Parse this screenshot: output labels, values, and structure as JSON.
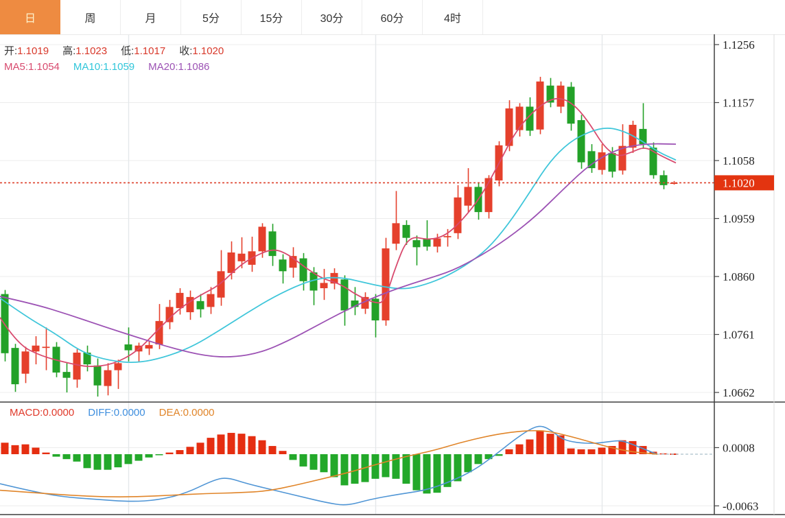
{
  "tabs": {
    "active_index": 0,
    "items": [
      "日",
      "周",
      "月",
      "5分",
      "15分",
      "30分",
      "60分",
      "4时"
    ]
  },
  "legend": {
    "ohlc": [
      {
        "label": "开:",
        "value": "1.1019"
      },
      {
        "label": "高:",
        "value": "1.1023"
      },
      {
        "label": "低:",
        "value": "1.1017"
      },
      {
        "label": "收:",
        "value": "1.1020"
      }
    ],
    "ma": [
      {
        "label": "MA5:",
        "value": "1.1054",
        "color": "#d84a6e"
      },
      {
        "label": "MA10:",
        "value": "1.1059",
        "color": "#30c6da"
      },
      {
        "label": "MA20:",
        "value": "1.1086",
        "color": "#9c52b4"
      }
    ],
    "macd": [
      {
        "label": "MACD:",
        "value": "0.0000",
        "color": "#e0392a"
      },
      {
        "label": "DIFF:",
        "value": "0.0000",
        "color": "#3e8ede"
      },
      {
        "label": "DEA:",
        "value": "0.0000",
        "color": "#e08428"
      }
    ]
  },
  "colors": {
    "up": "#e5402c",
    "down": "#23a128",
    "macd_up": "#e52e11",
    "macd_down": "#23a82a",
    "ma5": "#d84a6e",
    "ma10": "#3fc6da",
    "ma20": "#9c52b4",
    "diff": "#4f95d5",
    "dea": "#e08428",
    "ohlc_value": "#d8382a",
    "label_dark": "#333333",
    "grid": "#ececec",
    "vgrid": "#e4e8ea",
    "axis": "#3f3f3f",
    "dotted_line": "#dd3f28",
    "badge_bg": "#e33410",
    "badge_text": "#ffffff",
    "tab_active_bg": "#ee8b41",
    "tab_active_text": "#fdf1cb",
    "dashed_zero": "#b9ccd4"
  },
  "chart_data": {
    "type": "candlestick+macd",
    "title": "EUR/USD daily candlestick chart with MA5/MA10/MA20 and MACD",
    "price_axis": {
      "ticks": [
        "1.1256",
        "1.1157",
        "1.1058",
        "1.0959",
        "1.0860",
        "1.0761",
        "1.0662"
      ],
      "tick_values": [
        1.1256,
        1.1157,
        1.1058,
        1.0959,
        1.086,
        1.0761,
        1.0662
      ],
      "last_price_badge": {
        "label": "1.1020",
        "value": 1.102
      }
    },
    "macd_axis": {
      "ticks": [
        "0.0008",
        "-0.0063"
      ],
      "tick_values": [
        0.0008,
        -0.0063
      ]
    },
    "dotted_price_line": 1.102,
    "grid_candle_indices": [
      12,
      36,
      58
    ],
    "candles_format": [
      "open",
      "high",
      "low",
      "close"
    ],
    "candles": [
      [
        1.083,
        1.0837,
        1.0715,
        1.0729
      ],
      [
        1.0738,
        1.0745,
        1.0663,
        1.0676
      ],
      [
        1.0694,
        1.074,
        1.0678,
        1.0732
      ],
      [
        1.0732,
        1.0758,
        1.071,
        1.0742
      ],
      [
        1.0738,
        1.0773,
        1.07,
        1.074
      ],
      [
        1.074,
        1.0748,
        1.0688,
        1.0696
      ],
      [
        1.0697,
        1.0712,
        1.0662,
        1.0687
      ],
      [
        1.0684,
        1.0736,
        1.067,
        1.073
      ],
      [
        1.073,
        1.0742,
        1.0698,
        1.071
      ],
      [
        1.0708,
        1.072,
        1.0655,
        1.0674
      ],
      [
        1.0673,
        1.0712,
        1.0657,
        1.07
      ],
      [
        1.07,
        1.0718,
        1.0668,
        1.0712
      ],
      [
        1.0744,
        1.0773,
        1.0715,
        1.0734
      ],
      [
        1.0732,
        1.0747,
        1.0714,
        1.0742
      ],
      [
        1.0737,
        1.075,
        1.0726,
        1.0743
      ],
      [
        1.0744,
        1.0813,
        1.0736,
        1.0784
      ],
      [
        1.0782,
        1.082,
        1.077,
        1.0808
      ],
      [
        1.0806,
        1.084,
        1.0795,
        1.0832
      ],
      [
        1.0799,
        1.0836,
        1.0786,
        1.0825
      ],
      [
        1.0818,
        1.083,
        1.079,
        1.0804
      ],
      [
        1.0808,
        1.0842,
        1.0796,
        1.083
      ],
      [
        1.0824,
        1.0905,
        1.081,
        1.0869
      ],
      [
        1.0866,
        1.092,
        1.0855,
        1.0901
      ],
      [
        1.0886,
        1.0927,
        1.0874,
        1.0899
      ],
      [
        1.088,
        1.0928,
        1.0868,
        1.0903
      ],
      [
        1.0903,
        1.0951,
        1.0892,
        1.0945
      ],
      [
        1.0937,
        1.095,
        1.0878,
        1.0895
      ],
      [
        1.0889,
        1.0898,
        1.0848,
        1.0869
      ],
      [
        1.0875,
        1.091,
        1.0858,
        1.0895
      ],
      [
        1.0891,
        1.09,
        1.0836,
        1.0852
      ],
      [
        1.0867,
        1.0876,
        1.0811,
        1.0836
      ],
      [
        1.084,
        1.0873,
        1.082,
        1.0849
      ],
      [
        1.0848,
        1.0874,
        1.0838,
        1.0866
      ],
      [
        1.0855,
        1.0862,
        1.0776,
        1.0802
      ],
      [
        1.0819,
        1.0842,
        1.0794,
        1.0808
      ],
      [
        1.0805,
        1.0833,
        1.0796,
        1.0825
      ],
      [
        1.0822,
        1.083,
        1.0756,
        1.0785
      ],
      [
        1.0785,
        1.0926,
        1.0776,
        1.0908
      ],
      [
        1.0916,
        1.1006,
        1.0905,
        1.0951
      ],
      [
        1.0948,
        1.0956,
        1.0914,
        1.0926
      ],
      [
        1.0922,
        1.093,
        1.0879,
        1.091
      ],
      [
        1.0924,
        1.0956,
        1.0904,
        1.0911
      ],
      [
        1.0911,
        1.0933,
        1.0901,
        1.0925
      ],
      [
        1.0927,
        1.0941,
        1.0911,
        1.0929
      ],
      [
        1.0934,
        1.1016,
        1.0924,
        1.0995
      ],
      [
        1.0981,
        1.1045,
        1.0969,
        1.1013
      ],
      [
        1.1013,
        1.1021,
        1.0957,
        1.097
      ],
      [
        1.097,
        1.1033,
        1.0959,
        1.1028
      ],
      [
        1.1024,
        1.1091,
        1.1014,
        1.1084
      ],
      [
        1.1083,
        1.1161,
        1.1074,
        1.1147
      ],
      [
        1.111,
        1.1156,
        1.1099,
        1.115
      ],
      [
        1.115,
        1.1166,
        1.11,
        1.1109
      ],
      [
        1.1111,
        1.1201,
        1.1103,
        1.1193
      ],
      [
        1.1186,
        1.1199,
        1.1149,
        1.1157
      ],
      [
        1.115,
        1.1193,
        1.1139,
        1.1186
      ],
      [
        1.1184,
        1.1192,
        1.1109,
        1.1121
      ],
      [
        1.1127,
        1.1136,
        1.1044,
        1.1055
      ],
      [
        1.1074,
        1.1086,
        1.1037,
        1.1045
      ],
      [
        1.1042,
        1.1086,
        1.1034,
        1.1072
      ],
      [
        1.1071,
        1.1081,
        1.1029,
        1.1039
      ],
      [
        1.1041,
        1.112,
        1.1034,
        1.1083
      ],
      [
        1.108,
        1.1126,
        1.1071,
        1.1119
      ],
      [
        1.1112,
        1.1156,
        1.1078,
        1.1086
      ],
      [
        1.108,
        1.1089,
        1.1027,
        1.1033
      ],
      [
        1.1033,
        1.1041,
        1.1009,
        1.1016
      ],
      [
        1.1019,
        1.1023,
        1.1017,
        1.102
      ]
    ],
    "ma5_points": [
      [
        0,
        1.079
      ],
      [
        25,
        1.0745
      ],
      [
        60,
        1.0724
      ],
      [
        100,
        1.0712
      ],
      [
        130,
        1.0705
      ],
      [
        165,
        1.071
      ],
      [
        200,
        1.0732
      ],
      [
        230,
        1.0769
      ],
      [
        260,
        1.0804
      ],
      [
        290,
        1.0827
      ],
      [
        320,
        1.0845
      ],
      [
        350,
        1.088
      ],
      [
        380,
        1.09
      ],
      [
        400,
        1.0907
      ],
      [
        420,
        1.0898
      ],
      [
        445,
        1.0875
      ],
      [
        470,
        1.0856
      ],
      [
        495,
        1.0848
      ],
      [
        520,
        1.0828
      ],
      [
        545,
        1.0815
      ],
      [
        560,
        1.0815
      ],
      [
        575,
        1.0872
      ],
      [
        595,
        1.093
      ],
      [
        625,
        1.0922
      ],
      [
        650,
        1.093
      ],
      [
        675,
        1.0958
      ],
      [
        700,
        1.0995
      ],
      [
        725,
        1.1048
      ],
      [
        750,
        1.1105
      ],
      [
        775,
        1.114
      ],
      [
        800,
        1.1162
      ],
      [
        820,
        1.1165
      ],
      [
        840,
        1.115
      ],
      [
        860,
        1.112
      ],
      [
        880,
        1.1082
      ],
      [
        900,
        1.1064
      ],
      [
        920,
        1.1072
      ],
      [
        940,
        1.1082
      ],
      [
        960,
        1.1068
      ],
      [
        985,
        1.1054
      ]
    ],
    "ma10_points": [
      [
        0,
        1.0823
      ],
      [
        40,
        1.079
      ],
      [
        80,
        1.0763
      ],
      [
        120,
        1.073
      ],
      [
        160,
        1.0716
      ],
      [
        200,
        1.0712
      ],
      [
        240,
        1.0722
      ],
      [
        280,
        1.074
      ],
      [
        320,
        1.0768
      ],
      [
        360,
        1.0798
      ],
      [
        400,
        1.0826
      ],
      [
        440,
        1.0848
      ],
      [
        470,
        1.0858
      ],
      [
        500,
        1.0858
      ],
      [
        530,
        1.085
      ],
      [
        560,
        1.0842
      ],
      [
        590,
        1.0838
      ],
      [
        620,
        1.0846
      ],
      [
        650,
        1.086
      ],
      [
        680,
        1.088
      ],
      [
        710,
        1.0906
      ],
      [
        740,
        1.0948
      ],
      [
        770,
        1.1
      ],
      [
        800,
        1.1055
      ],
      [
        830,
        1.109
      ],
      [
        860,
        1.1108
      ],
      [
        885,
        1.1115
      ],
      [
        910,
        1.1108
      ],
      [
        935,
        1.1092
      ],
      [
        960,
        1.1072
      ],
      [
        985,
        1.1059
      ]
    ],
    "ma20_points": [
      [
        0,
        1.0826
      ],
      [
        50,
        1.0813
      ],
      [
        100,
        1.0795
      ],
      [
        150,
        1.0775
      ],
      [
        200,
        1.0756
      ],
      [
        250,
        1.0738
      ],
      [
        300,
        1.0724
      ],
      [
        340,
        1.0722
      ],
      [
        380,
        1.073
      ],
      [
        420,
        1.075
      ],
      [
        460,
        1.0775
      ],
      [
        500,
        1.08
      ],
      [
        540,
        1.0822
      ],
      [
        580,
        1.084
      ],
      [
        620,
        1.0855
      ],
      [
        660,
        1.087
      ],
      [
        700,
        1.0895
      ],
      [
        740,
        1.0925
      ],
      [
        780,
        1.0962
      ],
      [
        820,
        1.1008
      ],
      [
        860,
        1.1052
      ],
      [
        900,
        1.1078
      ],
      [
        940,
        1.1087
      ],
      [
        985,
        1.1086
      ]
    ],
    "macd_scale": 0.0001,
    "macd_hist": [
      14,
      11,
      12,
      8,
      2,
      -3,
      -6,
      -9,
      -17,
      -19,
      -19,
      -16,
      -12,
      -8,
      -4,
      -1,
      2,
      5,
      9,
      14,
      20,
      24,
      26,
      25,
      22,
      17,
      10,
      4,
      -7,
      -15,
      -19,
      -22,
      -28,
      -38,
      -36,
      -34,
      -30,
      -28,
      -30,
      -36,
      -44,
      -48,
      -47,
      -40,
      -33,
      -22,
      -12,
      -6,
      -2,
      6,
      12,
      18,
      29,
      25,
      23,
      7,
      6,
      6,
      8,
      10,
      17,
      16,
      10,
      3,
      1,
      0
    ],
    "diff_points": [
      [
        0,
        -36
      ],
      [
        40,
        -44
      ],
      [
        90,
        -52
      ],
      [
        140,
        -55
      ],
      [
        190,
        -58
      ],
      [
        230,
        -56
      ],
      [
        270,
        -48
      ],
      [
        310,
        -32
      ],
      [
        330,
        -28
      ],
      [
        360,
        -36
      ],
      [
        400,
        -44
      ],
      [
        440,
        -52
      ],
      [
        475,
        -59
      ],
      [
        505,
        -63
      ],
      [
        540,
        -55
      ],
      [
        580,
        -49
      ],
      [
        620,
        -44
      ],
      [
        655,
        -34
      ],
      [
        690,
        -20
      ],
      [
        720,
        -2
      ],
      [
        750,
        18
      ],
      [
        775,
        32
      ],
      [
        790,
        35
      ],
      [
        805,
        28
      ],
      [
        820,
        18
      ],
      [
        840,
        14
      ],
      [
        865,
        13
      ],
      [
        885,
        15
      ],
      [
        905,
        17
      ],
      [
        925,
        11
      ],
      [
        945,
        4
      ],
      [
        958,
        0
      ]
    ],
    "dea_points": [
      [
        0,
        -44
      ],
      [
        50,
        -47
      ],
      [
        100,
        -50
      ],
      [
        150,
        -52
      ],
      [
        200,
        -52
      ],
      [
        250,
        -50
      ],
      [
        300,
        -48
      ],
      [
        350,
        -47
      ],
      [
        390,
        -45
      ],
      [
        430,
        -38
      ],
      [
        470,
        -30
      ],
      [
        510,
        -22
      ],
      [
        550,
        -12
      ],
      [
        590,
        -3
      ],
      [
        630,
        4
      ],
      [
        670,
        14
      ],
      [
        710,
        22
      ],
      [
        745,
        27
      ],
      [
        775,
        29
      ],
      [
        800,
        28
      ],
      [
        830,
        22
      ],
      [
        860,
        15
      ],
      [
        890,
        8
      ],
      [
        920,
        3
      ],
      [
        945,
        1
      ],
      [
        958,
        0
      ]
    ]
  }
}
